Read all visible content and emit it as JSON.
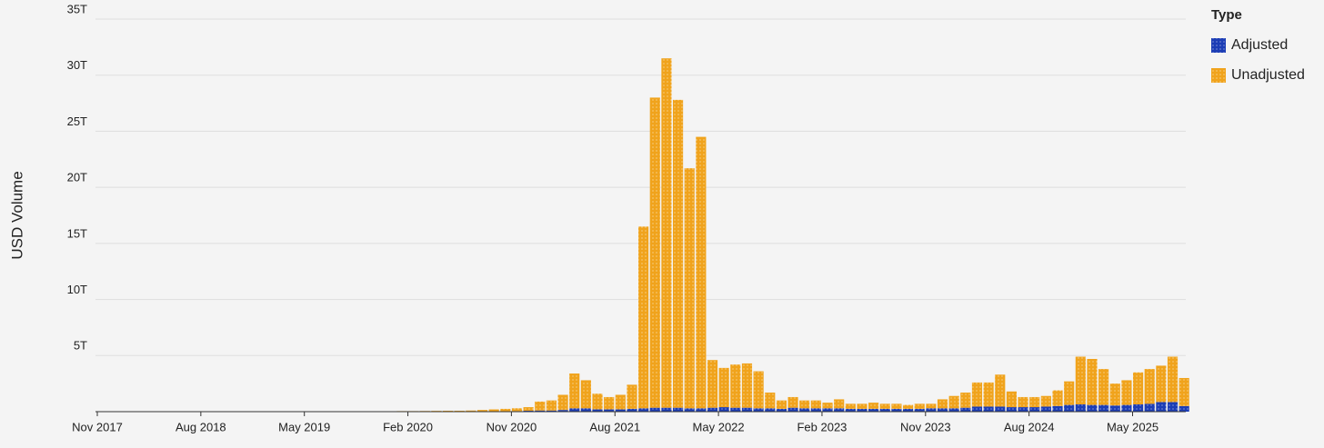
{
  "chart_data": {
    "type": "stacked_bar",
    "y_label": "USD Volume",
    "legend_title": "Type",
    "legend": "right",
    "grid": true,
    "ylim": [
      0,
      35
    ],
    "yticks": [
      {
        "value": 5,
        "label": "5T"
      },
      {
        "value": 10,
        "label": "10T"
      },
      {
        "value": 15,
        "label": "15T"
      },
      {
        "value": 20,
        "label": "20T"
      },
      {
        "value": 25,
        "label": "25T"
      },
      {
        "value": 30,
        "label": "30T"
      },
      {
        "value": 35,
        "label": "35T"
      }
    ],
    "categories": [
      "Nov 2017",
      null,
      null,
      null,
      null,
      null,
      null,
      null,
      null,
      "Aug 2018",
      null,
      null,
      null,
      null,
      null,
      null,
      null,
      null,
      "May 2019",
      null,
      null,
      null,
      null,
      null,
      null,
      null,
      null,
      "Feb 2020",
      null,
      null,
      null,
      null,
      null,
      null,
      null,
      null,
      "Nov 2020",
      null,
      null,
      null,
      null,
      null,
      null,
      null,
      null,
      "Aug 2021",
      null,
      null,
      null,
      null,
      null,
      null,
      null,
      null,
      "May 2022",
      null,
      null,
      null,
      null,
      null,
      null,
      null,
      null,
      "Feb 2023",
      null,
      null,
      null,
      null,
      null,
      null,
      null,
      null,
      "Nov 2023",
      null,
      null,
      null,
      null,
      null,
      null,
      null,
      null,
      "Aug 2024",
      null,
      null,
      null,
      null,
      null,
      null,
      null,
      null,
      "May 2025",
      null,
      null,
      null,
      null
    ],
    "series": [
      {
        "name": "Adjusted",
        "color": "#1c3db5",
        "values": [
          0,
          0,
          0,
          0,
          0,
          0,
          0,
          0,
          0,
          0,
          0,
          0,
          0,
          0,
          0,
          0,
          0,
          0,
          0,
          0,
          0,
          0,
          0,
          0,
          0,
          0,
          0,
          0,
          0,
          0,
          0,
          0,
          0,
          0,
          0,
          0.02,
          0.05,
          0.08,
          0.1,
          0.1,
          0.15,
          0.3,
          0.3,
          0.2,
          0.2,
          0.2,
          0.25,
          0.3,
          0.35,
          0.35,
          0.35,
          0.3,
          0.3,
          0.35,
          0.4,
          0.35,
          0.35,
          0.3,
          0.3,
          0.25,
          0.35,
          0.3,
          0.3,
          0.3,
          0.3,
          0.25,
          0.25,
          0.25,
          0.25,
          0.25,
          0.25,
          0.25,
          0.3,
          0.3,
          0.3,
          0.35,
          0.45,
          0.45,
          0.45,
          0.4,
          0.4,
          0.4,
          0.45,
          0.5,
          0.6,
          0.65,
          0.6,
          0.6,
          0.55,
          0.6,
          0.65,
          0.7,
          0.85,
          0.85,
          0.5
        ]
      },
      {
        "name": "Unadjusted",
        "color": "#f0a31c",
        "values": [
          0.01,
          0.01,
          0.01,
          0.01,
          0.01,
          0.01,
          0.01,
          0.01,
          0.01,
          0.01,
          0.02,
          0.02,
          0.02,
          0.02,
          0.02,
          0.02,
          0.02,
          0.02,
          0.03,
          0.03,
          0.03,
          0.03,
          0.03,
          0.03,
          0.03,
          0.03,
          0.05,
          0.05,
          0.06,
          0.07,
          0.08,
          0.08,
          0.1,
          0.15,
          0.2,
          0.23,
          0.25,
          0.32,
          0.8,
          0.9,
          1.35,
          3.1,
          2.5,
          1.4,
          1.1,
          1.3,
          2.15,
          16.2,
          27.65,
          31.15,
          27.45,
          21.4,
          24.2,
          4.25,
          3.5,
          3.85,
          3.95,
          3.3,
          1.4,
          0.75,
          0.95,
          0.7,
          0.7,
          0.5,
          0.8,
          0.45,
          0.45,
          0.55,
          0.45,
          0.45,
          0.35,
          0.45,
          0.4,
          0.8,
          1.1,
          1.35,
          2.15,
          2.15,
          2.85,
          1.4,
          0.9,
          0.9,
          0.95,
          1.4,
          2.1,
          4.25,
          4.1,
          3.2,
          1.95,
          2.2,
          2.85,
          3.1,
          3.25,
          4.05,
          2.5
        ]
      }
    ]
  }
}
